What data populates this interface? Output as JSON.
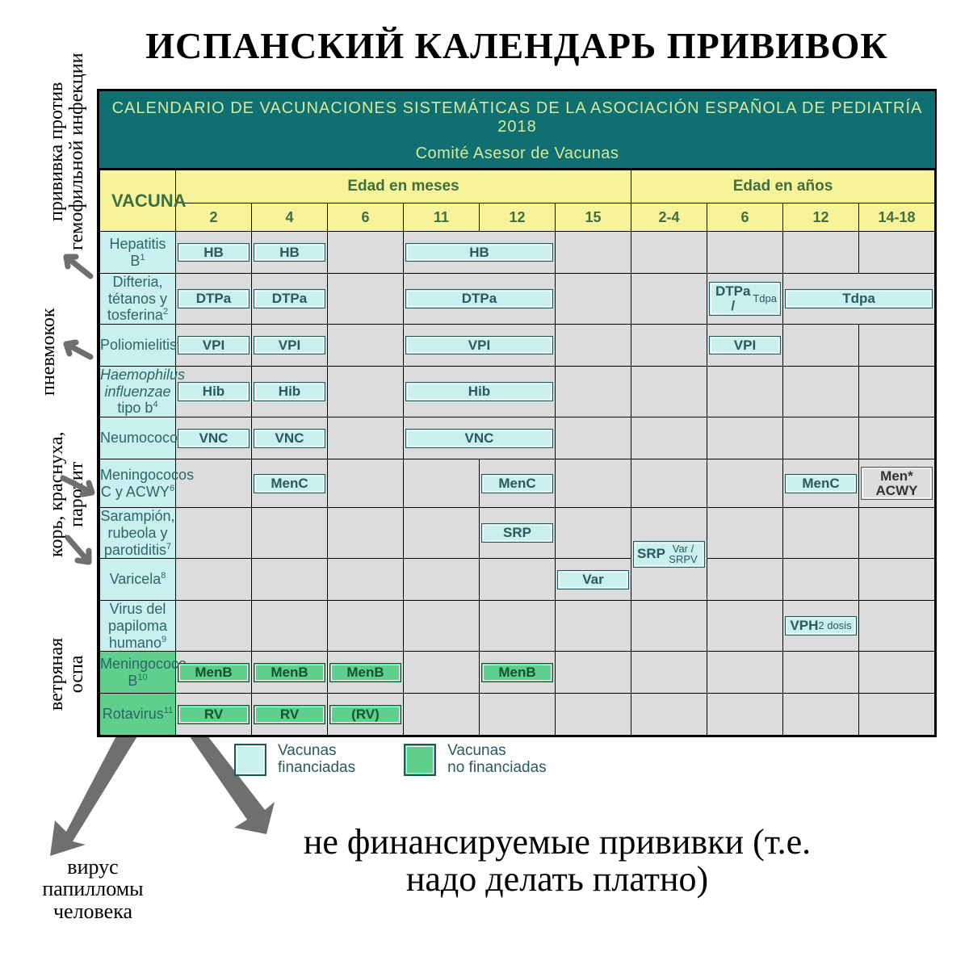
{
  "title": "ИСПАНСКИЙ КАЛЕНДАРЬ ПРИВИВОК",
  "header": {
    "line1": "CALENDARIO DE VACUNACIONES SISTEMÁTICAS DE LA ASOCIACIÓN ESPAÑOLA DE PEDIATRÍA 2018",
    "line2": "Comité Asesor de Vacunas",
    "bg": "#0f6f71",
    "fg": "#d7e99a"
  },
  "columns": {
    "vaccine_label": "VACUNA",
    "months_label": "Edad en meses",
    "years_label": "Edad en años",
    "months": [
      "2",
      "4",
      "6",
      "11",
      "12",
      "15"
    ],
    "years": [
      "2-4",
      "6",
      "12",
      "14-18"
    ]
  },
  "colors": {
    "yellow": "#f7f39a",
    "blue": "#c9efef",
    "green": "#5ecf8d",
    "grey": "#dcdcdc",
    "teal_text": "#2d6666",
    "arrow": "#6f6f6f"
  },
  "rows": [
    {
      "id": "hepb",
      "label": "Hepatitis B",
      "sup": "1",
      "green": false,
      "cells": [
        {
          "c": "m2",
          "t": "HB",
          "cls": "blue"
        },
        {
          "c": "m4",
          "t": "HB",
          "cls": "blue"
        },
        {
          "c": "m6",
          "grey": true
        },
        {
          "c": "m11-12",
          "span": 2,
          "t": "HB",
          "cls": "blue"
        },
        {
          "c": "m15",
          "grey": true
        },
        {
          "c": "y2-4",
          "grey": true
        },
        {
          "c": "y6",
          "grey": true
        },
        {
          "c": "y12",
          "grey": true
        },
        {
          "c": "y14-18",
          "grey": true
        }
      ]
    },
    {
      "id": "dtp",
      "label": "Difteria, tétanos y tosferina",
      "sup": "2",
      "green": false,
      "tall": true,
      "cells": [
        {
          "c": "m2",
          "t": "DTPa",
          "cls": "blue"
        },
        {
          "c": "m4",
          "t": "DTPa",
          "cls": "blue"
        },
        {
          "c": "m6",
          "grey": true
        },
        {
          "c": "m11-12",
          "span": 2,
          "t": "DTPa",
          "cls": "blue"
        },
        {
          "c": "m15",
          "grey": true
        },
        {
          "c": "y2-4",
          "grey": true
        },
        {
          "c": "y6",
          "t": "DTPa /",
          "sub": "Tdpa",
          "cls": "blue"
        },
        {
          "c": "y12-18",
          "span": 2,
          "t": "Tdpa",
          "cls": "blue"
        }
      ]
    },
    {
      "id": "polio",
      "label": "Poliomielitis",
      "sup": "3",
      "green": false,
      "cells": [
        {
          "c": "m2",
          "t": "VPI",
          "cls": "blue"
        },
        {
          "c": "m4",
          "t": "VPI",
          "cls": "blue"
        },
        {
          "c": "m6",
          "grey": true
        },
        {
          "c": "m11-12",
          "span": 2,
          "t": "VPI",
          "cls": "blue"
        },
        {
          "c": "m15",
          "grey": true
        },
        {
          "c": "y2-4",
          "grey": true
        },
        {
          "c": "y6",
          "t": "VPI",
          "cls": "blue"
        },
        {
          "c": "y12",
          "grey": true
        },
        {
          "c": "y14-18",
          "grey": true
        }
      ]
    },
    {
      "id": "hib",
      "label_html": "<em>Haemophilus influenzae</em> tipo b",
      "sup": "4",
      "green": false,
      "tall": true,
      "cells": [
        {
          "c": "m2",
          "t": "Hib",
          "cls": "blue"
        },
        {
          "c": "m4",
          "t": "Hib",
          "cls": "blue"
        },
        {
          "c": "m6",
          "grey": true
        },
        {
          "c": "m11-12",
          "span": 2,
          "t": "Hib",
          "cls": "blue"
        },
        {
          "c": "m15",
          "grey": true
        },
        {
          "c": "y2-4",
          "grey": true
        },
        {
          "c": "y6",
          "grey": true
        },
        {
          "c": "y12",
          "grey": true
        },
        {
          "c": "y14-18",
          "grey": true
        }
      ]
    },
    {
      "id": "neumo",
      "label": "Neumococo",
      "sup": "5",
      "green": false,
      "cells": [
        {
          "c": "m2",
          "t": "VNC",
          "cls": "blue"
        },
        {
          "c": "m4",
          "t": "VNC",
          "cls": "blue"
        },
        {
          "c": "m6",
          "grey": true
        },
        {
          "c": "m11-12",
          "span": 2,
          "t": "VNC",
          "cls": "blue"
        },
        {
          "c": "m15",
          "grey": true
        },
        {
          "c": "y2-4",
          "grey": true
        },
        {
          "c": "y6",
          "grey": true
        },
        {
          "c": "y12",
          "grey": true
        },
        {
          "c": "y14-18",
          "grey": true
        }
      ]
    },
    {
      "id": "menc",
      "label": "Meningococos C y ACWY",
      "sup": "6",
      "green": false,
      "tall": true,
      "cells": [
        {
          "c": "m2",
          "grey": true
        },
        {
          "c": "m4",
          "t": "MenC",
          "cls": "blue"
        },
        {
          "c": "m6",
          "grey": true
        },
        {
          "c": "m11",
          "grey": true
        },
        {
          "c": "m12",
          "t": "MenC",
          "cls": "blue"
        },
        {
          "c": "m15",
          "grey": true
        },
        {
          "c": "y2-4",
          "grey": true
        },
        {
          "c": "y6",
          "grey": true
        },
        {
          "c": "y12",
          "t": "MenC",
          "cls": "blue"
        },
        {
          "c": "y14-18",
          "t": "Men*\nACWY",
          "cls": "grey"
        }
      ]
    },
    {
      "id": "srp",
      "label": "Sarampión, rubeola y parotiditis",
      "sup": "7",
      "green": false,
      "tall": true,
      "cells": [
        {
          "c": "m2",
          "grey": true
        },
        {
          "c": "m4",
          "grey": true
        },
        {
          "c": "m6",
          "grey": true
        },
        {
          "c": "m11",
          "grey": true
        },
        {
          "c": "m12",
          "t": "SRP",
          "cls": "blue"
        },
        {
          "c": "m15",
          "grey": true
        },
        {
          "c": "y2-4",
          "t": "SRP",
          "sub": "Var / SRPV",
          "cls": "blue",
          "rowspan": 2
        },
        {
          "c": "y6",
          "grey": true
        },
        {
          "c": "y12",
          "grey": true
        },
        {
          "c": "y14-18",
          "grey": true
        }
      ]
    },
    {
      "id": "var",
      "label": "Varicela",
      "sup": "8",
      "green": false,
      "cells": [
        {
          "c": "m2",
          "grey": true
        },
        {
          "c": "m4",
          "grey": true
        },
        {
          "c": "m6",
          "grey": true
        },
        {
          "c": "m11",
          "grey": true
        },
        {
          "c": "m12",
          "grey": true
        },
        {
          "c": "m15",
          "t": "Var",
          "cls": "blue"
        },
        {
          "c": "y6",
          "grey": true
        },
        {
          "c": "y12",
          "grey": true
        },
        {
          "c": "y14-18",
          "grey": true
        }
      ]
    },
    {
      "id": "vph",
      "label": "Virus del papiloma humano",
      "sup": "9",
      "green": false,
      "tall": true,
      "cells": [
        {
          "c": "m2",
          "grey": true
        },
        {
          "c": "m4",
          "grey": true
        },
        {
          "c": "m6",
          "grey": true
        },
        {
          "c": "m11",
          "grey": true
        },
        {
          "c": "m12",
          "grey": true
        },
        {
          "c": "m15",
          "grey": true
        },
        {
          "c": "y2-4",
          "grey": true
        },
        {
          "c": "y6",
          "grey": true
        },
        {
          "c": "y12",
          "t": "VPH",
          "sub": "2 dosis",
          "cls": "blue"
        },
        {
          "c": "y14-18",
          "grey": true
        }
      ]
    },
    {
      "id": "menb",
      "label": "Meningococo B",
      "sup": "10",
      "green": true,
      "cells": [
        {
          "c": "m2",
          "t": "MenB",
          "cls": "green"
        },
        {
          "c": "m4",
          "t": "MenB",
          "cls": "green"
        },
        {
          "c": "m6",
          "t": "MenB",
          "cls": "green"
        },
        {
          "c": "m11",
          "grey": true
        },
        {
          "c": "m12",
          "t": "MenB",
          "cls": "green"
        },
        {
          "c": "m15",
          "grey": true
        },
        {
          "c": "y2-4",
          "grey": true
        },
        {
          "c": "y6",
          "grey": true
        },
        {
          "c": "y12",
          "grey": true
        },
        {
          "c": "y14-18",
          "grey": true
        }
      ]
    },
    {
      "id": "rota",
      "label": "Rotavirus",
      "sup": "11",
      "green": true,
      "cells": [
        {
          "c": "m2",
          "t": "RV",
          "cls": "green"
        },
        {
          "c": "m4",
          "t": "RV",
          "cls": "green"
        },
        {
          "c": "m6",
          "t": "(RV)",
          "cls": "green"
        },
        {
          "c": "m11",
          "grey": true
        },
        {
          "c": "m12",
          "grey": true
        },
        {
          "c": "m15",
          "grey": true
        },
        {
          "c": "y2-4",
          "grey": true
        },
        {
          "c": "y6",
          "grey": true
        },
        {
          "c": "y12",
          "grey": true
        },
        {
          "c": "y14-18",
          "grey": true
        }
      ]
    }
  ],
  "legend": {
    "financed": "Vacunas\nfinanciadas",
    "not_financed": "Vacunas\nno financiadas"
  },
  "side_annotations": {
    "hib": "прививка против\nгемофильной инфекции",
    "pneumo": "пневмокок",
    "mmr": "корь, краснуха,\nпаротит",
    "varicella": "ветряная\nоспа"
  },
  "bottom_left": "вирус\nпапилломы\nчеловека",
  "bottom_main": "не финансируемые прививки (т.е.\nнадо делать платно)"
}
